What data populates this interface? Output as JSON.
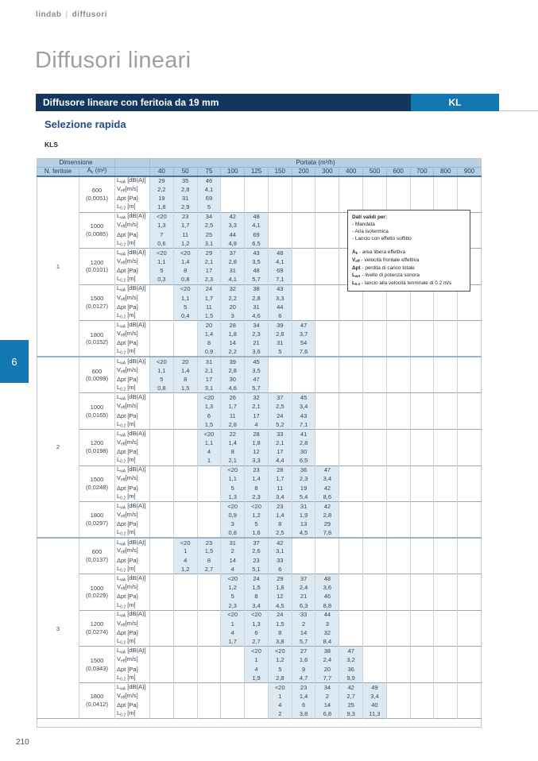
{
  "page": {
    "brand_left": "lindab",
    "brand_right": "diffusori",
    "title": "Diffusori lineari",
    "bar_title": "Diffusore lineare con feritoia da 19 mm",
    "bar_code": "KL",
    "section_heading": "Selezione rapida",
    "model": "KLS",
    "side_tab": "6",
    "page_number": "210"
  },
  "colors": {
    "navy_bar": "#12365e",
    "accent_blue": "#1377b2",
    "table_header_band": "#b7cfe3",
    "cell_shade": "#dce8f2"
  },
  "table": {
    "header": {
      "dimension_label": "Dimensione",
      "portata_label": "Portata (m³/h)",
      "feritoie_label": "N. feritoie",
      "ak_label": {
        "base": "A",
        "sub": "k",
        "rest": " (m²)"
      }
    },
    "flow_columns": [
      "40",
      "50",
      "75",
      "100",
      "125",
      "150",
      "200",
      "300",
      "400",
      "500",
      "600",
      "700",
      "800",
      "900"
    ],
    "metric_labels": [
      {
        "base": "L",
        "sub": "wA",
        "rest": " [dB(A)]"
      },
      {
        "base": "V",
        "sub": "eff",
        "rest": "[m/s]"
      },
      {
        "base": "Δpt",
        "sub": "",
        "rest": " [Pa]"
      },
      {
        "base": "L",
        "sub": "0.2",
        "rest": " [m]"
      }
    ],
    "sections": [
      {
        "feritoie": "1",
        "blocks": [
          {
            "dimension": "600",
            "ak": "(0,0051)",
            "start": 0,
            "rows": [
              [
                "29",
                "35",
                "46"
              ],
              [
                "2,2",
                "2,8",
                "4,1"
              ],
              [
                "19",
                "31",
                "69"
              ],
              [
                "1,8",
                "2,9",
                "5"
              ]
            ]
          },
          {
            "dimension": "1000",
            "ak": "(0,0085)",
            "start": 0,
            "rows": [
              [
                "<20",
                "23",
                "34",
                "42",
                "48"
              ],
              [
                "1,3",
                "1,7",
                "2,5",
                "3,3",
                "4,1"
              ],
              [
                "7",
                "11",
                "25",
                "44",
                "69"
              ],
              [
                "0,6",
                "1,2",
                "3,1",
                "4,9",
                "6,5"
              ]
            ]
          },
          {
            "dimension": "1200",
            "ak": "(0,0101)",
            "start": 0,
            "rows": [
              [
                "<20",
                "<20",
                "29",
                "37",
                "43",
                "48"
              ],
              [
                "1,1",
                "1,4",
                "2,1",
                "2,8",
                "3,5",
                "4,1"
              ],
              [
                "5",
                "8",
                "17",
                "31",
                "48",
                "69"
              ],
              [
                "0,3",
                "0,8",
                "2,3",
                "4,1",
                "5,7",
                "7,1"
              ]
            ]
          },
          {
            "dimension": "1500",
            "ak": "(0,0127)",
            "start": 1,
            "rows": [
              [
                "<20",
                "24",
                "32",
                "38",
                "43"
              ],
              [
                "1,1",
                "1,7",
                "2,2",
                "2,8",
                "3,3"
              ],
              [
                "5",
                "11",
                "20",
                "31",
                "44"
              ],
              [
                "0,4",
                "1,5",
                "3",
                "4,6",
                "6"
              ]
            ]
          },
          {
            "dimension": "1800",
            "ak": "(0,0152)",
            "start": 2,
            "rows": [
              [
                "20",
                "28",
                "34",
                "39",
                "47"
              ],
              [
                "1,4",
                "1,8",
                "2,3",
                "2,8",
                "3,7"
              ],
              [
                "8",
                "14",
                "21",
                "31",
                "54"
              ],
              [
                "0,9",
                "2,2",
                "3,6",
                "5",
                "7,6"
              ]
            ]
          }
        ]
      },
      {
        "feritoie": "2",
        "blocks": [
          {
            "dimension": "600",
            "ak": "(0,0099)",
            "start": 0,
            "rows": [
              [
                "<20",
                "20",
                "31",
                "39",
                "45"
              ],
              [
                "1,1",
                "1,4",
                "2,1",
                "2,8",
                "3,5"
              ],
              [
                "5",
                "8",
                "17",
                "30",
                "47"
              ],
              [
                "0,8",
                "1,5",
                "3,1",
                "4,6",
                "5,7"
              ]
            ]
          },
          {
            "dimension": "1000",
            "ak": "(0,0165)",
            "start": 2,
            "rows": [
              [
                "<20",
                "26",
                "32",
                "37",
                "45"
              ],
              [
                "1,3",
                "1,7",
                "2,1",
                "2,5",
                "3,4"
              ],
              [
                "6",
                "11",
                "17",
                "24",
                "43"
              ],
              [
                "1,5",
                "2,8",
                "4",
                "5,2",
                "7,1"
              ]
            ]
          },
          {
            "dimension": "1200",
            "ak": "(0,0198)",
            "start": 2,
            "rows": [
              [
                "<20",
                "22",
                "28",
                "33",
                "41"
              ],
              [
                "1,1",
                "1,4",
                "1,8",
                "2,1",
                "2,8"
              ],
              [
                "4",
                "8",
                "12",
                "17",
                "30"
              ],
              [
                "1",
                "2,1",
                "3,3",
                "4,4",
                "6,5"
              ]
            ]
          },
          {
            "dimension": "1500",
            "ak": "(0,0248)",
            "start": 3,
            "rows": [
              [
                "<20",
                "23",
                "28",
                "36",
                "47"
              ],
              [
                "1,1",
                "1,4",
                "1,7",
                "2,3",
                "3,4"
              ],
              [
                "5",
                "8",
                "11",
                "19",
                "42"
              ],
              [
                "1,3",
                "2,3",
                "3,4",
                "5,4",
                "8,6"
              ]
            ]
          },
          {
            "dimension": "1800",
            "ak": "(0,0297)",
            "start": 3,
            "rows": [
              [
                "<20",
                "<20",
                "23",
                "31",
                "42"
              ],
              [
                "0,9",
                "1,2",
                "1,4",
                "1,9",
                "2,8"
              ],
              [
                "3",
                "5",
                "8",
                "13",
                "29"
              ],
              [
                "0,8",
                "1,6",
                "2,5",
                "4,5",
                "7,8"
              ]
            ]
          }
        ]
      },
      {
        "feritoie": "3",
        "blocks": [
          {
            "dimension": "600",
            "ak": "(0,0137)",
            "start": 1,
            "rows": [
              [
                "<20",
                "23",
                "31",
                "37",
                "42"
              ],
              [
                "1",
                "1,5",
                "2",
                "2,6",
                "3,1"
              ],
              [
                "4",
                "8",
                "14",
                "23",
                "33"
              ],
              [
                "1,2",
                "2,7",
                "4",
                "5,1",
                "6"
              ]
            ]
          },
          {
            "dimension": "1000",
            "ak": "(0,0229)",
            "start": 3,
            "rows": [
              [
                "<20",
                "24",
                "29",
                "37",
                "48"
              ],
              [
                "1,2",
                "1,5",
                "1,8",
                "2,4",
                "3,6"
              ],
              [
                "5",
                "8",
                "12",
                "21",
                "46"
              ],
              [
                "2,3",
                "3,4",
                "4,5",
                "6,3",
                "8,8"
              ]
            ]
          },
          {
            "dimension": "1200",
            "ak": "(0,0274)",
            "start": 3,
            "rows": [
              [
                "<20",
                "<20",
                "24",
                "33",
                "44"
              ],
              [
                "1",
                "1,3",
                "1,5",
                "2",
                "3"
              ],
              [
                "4",
                "6",
                "8",
                "14",
                "32"
              ],
              [
                "1,7",
                "2,7",
                "3,8",
                "5,7",
                "8,4"
              ]
            ]
          },
          {
            "dimension": "1500",
            "ak": "(0,0343)",
            "start": 4,
            "rows": [
              [
                "<20",
                "<20",
                "27",
                "38",
                "47"
              ],
              [
                "1",
                "1,2",
                "1,6",
                "2,4",
                "3,2"
              ],
              [
                "4",
                "5",
                "9",
                "20",
                "36"
              ],
              [
                "1,9",
                "2,8",
                "4,7",
                "7,7",
                "9,9"
              ]
            ]
          },
          {
            "dimension": "1800",
            "ak": "(0,0412)",
            "start": 5,
            "rows": [
              [
                "<20",
                "23",
                "34",
                "42",
                "49"
              ],
              [
                "1",
                "1,4",
                "2",
                "2,7",
                "3,4"
              ],
              [
                "4",
                "6",
                "14",
                "25",
                "40"
              ],
              [
                "2",
                "3,8",
                "6,8",
                "9,3",
                "11,3"
              ]
            ]
          }
        ]
      }
    ]
  },
  "note_box": {
    "title": "Dati validi per:",
    "conditions": [
      "- Mandata",
      "- Aria isotermica",
      "- Lancio con effetto soffitto"
    ],
    "definitions": [
      {
        "base": "A",
        "sub": "k",
        "text": " - area libera effettiva"
      },
      {
        "base": "V",
        "sub": "eff",
        "text": " - velocità frontale effettiva"
      },
      {
        "base": "Δpt",
        "sub": "",
        "text": " - perdita di carico totale"
      },
      {
        "base": "L",
        "sub": "wA",
        "text": " - livello di potenza sonora"
      },
      {
        "base": "L",
        "sub": "0.2",
        "text": " - lancio alla velocità terminale di 0.2 m/s"
      }
    ]
  }
}
